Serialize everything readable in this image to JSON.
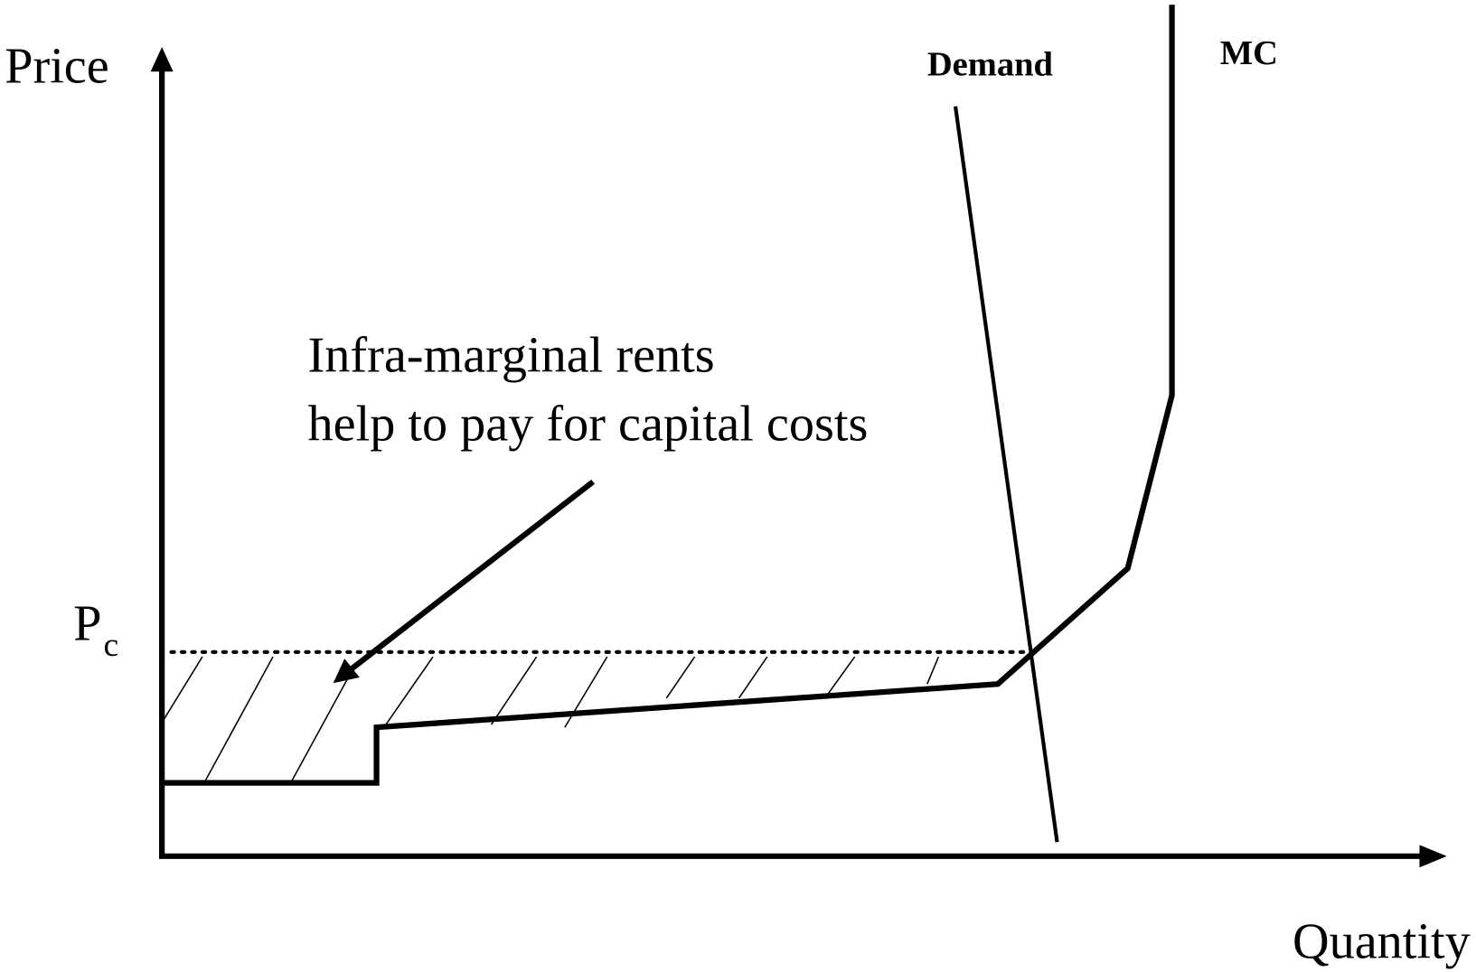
{
  "axes": {
    "y_label": "Price",
    "x_label": "Quantity"
  },
  "price_level": {
    "label": "P",
    "subscript": "c"
  },
  "curves": {
    "demand": "Demand",
    "mc": "MC"
  },
  "annotation": {
    "lines": [
      "Infra-marginal rents",
      "help to pay for capital costs"
    ]
  }
}
